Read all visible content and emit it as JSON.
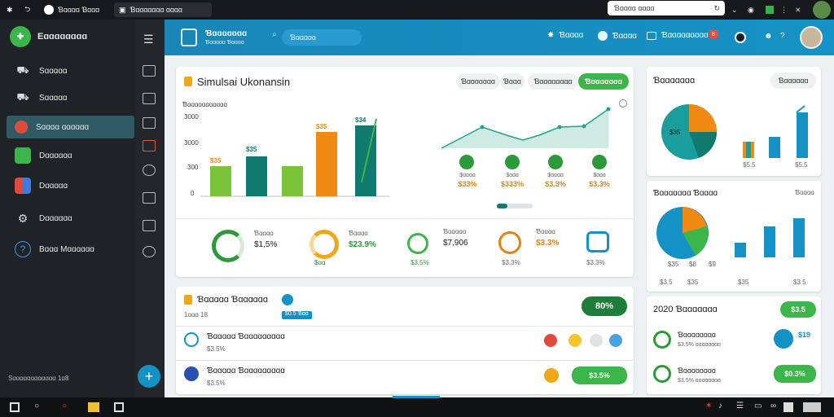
{
  "browser": {
    "tab1": "Ɓɑɑɑɑ Ɓɑɑɑ",
    "tab2": "Ɓɑɑɑɑɑɑɑ ɑɑɑɑ",
    "url": "Ɓɑɑɑɑ ɑɑɑɑ"
  },
  "sidebar": {
    "brand": "Eɑɑɑɑɑɑɑɑ",
    "items": [
      {
        "label": "Sɑɑɑɑɑ"
      },
      {
        "label": "Sɑɑɑɑɑ"
      },
      {
        "label": "Sɑɑɑɑ ɑɑɑɑɑɑ"
      },
      {
        "label": "Dɑɑɑɑɑɑ"
      },
      {
        "label": "Dɑɑɑɑɑ"
      },
      {
        "label": "Dɑɑɑɑɑɑ"
      },
      {
        "label": "Bɑɑɑ Mɑɑɑɑɑɑ"
      }
    ],
    "footer": "Sɑɑɑɑɑɑɑɑɑɑɑɑ 1ɑ8"
  },
  "topbar": {
    "title": "Ɓɑɑɑɑɑɑɑ",
    "subtitle": "Ɓɑɑɑɑɑ Ɓɑɑɑɑ",
    "search": "Ɓɑɑɑɑɑ",
    "nav1": "Ɓɑɑɑɑ",
    "nav2": "Ɓɑɑɑɑ",
    "nav3": "Ɓɑɑɑɑɑɑɑɑɑ",
    "badge": "8"
  },
  "main": {
    "title": "Simulsai Ukonansin",
    "btn1": "Ɓɑɑɑɑɑɑɑ",
    "btn2": "Ɓɑɑɑ",
    "btn3": "Ɓɑɑɑɑɑɑɑɑ",
    "btn4": "Ɓɑɑɑɑɑɑɑ",
    "chart_label": "Ɓɑɑɑɑɑɑɑɑɑɑɑ",
    "ticks": [
      "3000",
      "3000",
      "300",
      "0"
    ],
    "bar_labels": [
      "$35",
      "$35",
      "$35",
      "$34"
    ],
    "milestones": [
      {
        "label": "$ɑɑɑɑ",
        "value": "$33%"
      },
      {
        "label": "$ɑɑɑ",
        "value": "$333%"
      },
      {
        "label": "$ɑɑɑɑ",
        "value": "$3.3%"
      },
      {
        "label": "$ɑɑɑ",
        "value": "$3.3%"
      }
    ],
    "stats": [
      {
        "label": "Ɓɑɑɑɑ",
        "value": "$1,5%",
        "sub": ""
      },
      {
        "label": "Ɓɑɑɑɑ",
        "value": "$23.9%",
        "sub": "$ɑɑ"
      },
      {
        "label": "Ɓɑɑɑɑɑ",
        "value": "$7,906",
        "sub": "$3.5%"
      },
      {
        "label": "Ɓɑɑɑɑ",
        "value": "$3.3%",
        "sub": "$3.3%"
      },
      {
        "label": "",
        "value": "",
        "sub": "$3.3%"
      }
    ]
  },
  "bottom_left": {
    "title": "Ɓɑɑɑɑɑ Ɓɑɑɑɑɑɑ",
    "meta": "1ɑɑɑ 18",
    "chip": "$0.5 Ɓɑɑ",
    "percent": "80%",
    "rows": [
      {
        "title": "Ɓɑɑɑɑɑ Ɓɑɑɑɑɑɑɑɑɑ",
        "sub": "$3.5%"
      },
      {
        "title": "Ɓɑɑɑɑɑ Ɓɑɑɑɑɑɑɑɑɑ",
        "sub": "$3.5%",
        "amount": "$3.5%"
      }
    ]
  },
  "right": {
    "card1_title": "Ɓɑɑɑɑɑɑɑ",
    "card1_btn": "Ɓɑɑɑɑɑɑ",
    "card1_labels": [
      "$35",
      "$5.5",
      "$5.5"
    ],
    "card2_title": "Ɓɑɑɑɑɑɑɑ Ɓɑɑɑɑ",
    "card2_btn": "Ɓɑɑɑɑ",
    "card2_labels": [
      "$35",
      "$8",
      "$9",
      "$3.5",
      "$35",
      "$35",
      "$3.5"
    ],
    "card3_title": "2020 Ɓɑɑɑɑɑɑɑ",
    "card3_btn": "$3.5",
    "card3_rows": [
      {
        "title": "Ɓɑɑɑɑɑɑɑɑ",
        "sub": "$3.5% ɑɑɑɑɑɑɑɑ",
        "amount": "$19"
      },
      {
        "title": "Ɓɑɑɑɑɑɑɑɑ",
        "sub": "$3.5% ɑɑɑɑɑɑɑɑ",
        "amount": "$0.3%"
      }
    ]
  },
  "colors": {
    "green": "#3cb64a",
    "teal": "#117a6e",
    "orange": "#f08a12",
    "blue": "#1592c5"
  }
}
